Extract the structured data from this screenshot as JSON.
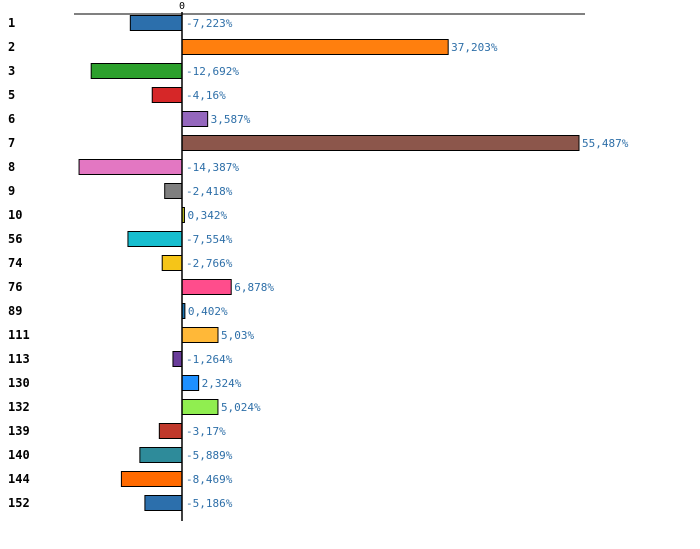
{
  "chart_data": {
    "type": "bar",
    "orientation": "horizontal",
    "title": "",
    "xlabel": "",
    "ylabel": "",
    "x_tick_labels": [
      "0"
    ],
    "xlim": [
      -20,
      60
    ],
    "grid": false,
    "legend": "none",
    "categories": [
      "1",
      "2",
      "3",
      "5",
      "6",
      "7",
      "8",
      "9",
      "10",
      "56",
      "74",
      "76",
      "89",
      "111",
      "113",
      "130",
      "132",
      "139",
      "140",
      "144",
      "152"
    ],
    "values": [
      -7.223,
      37.203,
      -12.692,
      -4.16,
      3.587,
      55.487,
      -14.387,
      -2.418,
      0.342,
      -7.554,
      -2.766,
      6.878,
      0.402,
      5.03,
      -1.264,
      2.324,
      5.024,
      -3.17,
      -5.889,
      -8.469,
      -5.186
    ],
    "value_labels": [
      "-7,223%",
      "37,203%",
      "-12,692%",
      "-4,16%",
      "3,587%",
      "55,487%",
      "-14,387%",
      "-2,418%",
      "0,342%",
      "-7,554%",
      "-2,766%",
      "6,878%",
      "0,402%",
      "5,03%",
      "-1,264%",
      "2,324%",
      "5,024%",
      "-3,17%",
      "-5,889%",
      "-8,469%",
      "-5,186%"
    ],
    "colors": [
      "#2c6fac",
      "#ff7f0e",
      "#2ca02c",
      "#d62728",
      "#9467bd",
      "#8c564b",
      "#e377c2",
      "#7f7f7f",
      "#bcbd22",
      "#17becf",
      "#f5c518",
      "#ff4d8c",
      "#1f77b4",
      "#ffb838",
      "#6a3d9a",
      "#1e90ff",
      "#90ee50",
      "#c0392b",
      "#2e8b9a",
      "#ff6a00",
      "#2c6fac"
    ],
    "label_color": "#2e6fa8"
  }
}
